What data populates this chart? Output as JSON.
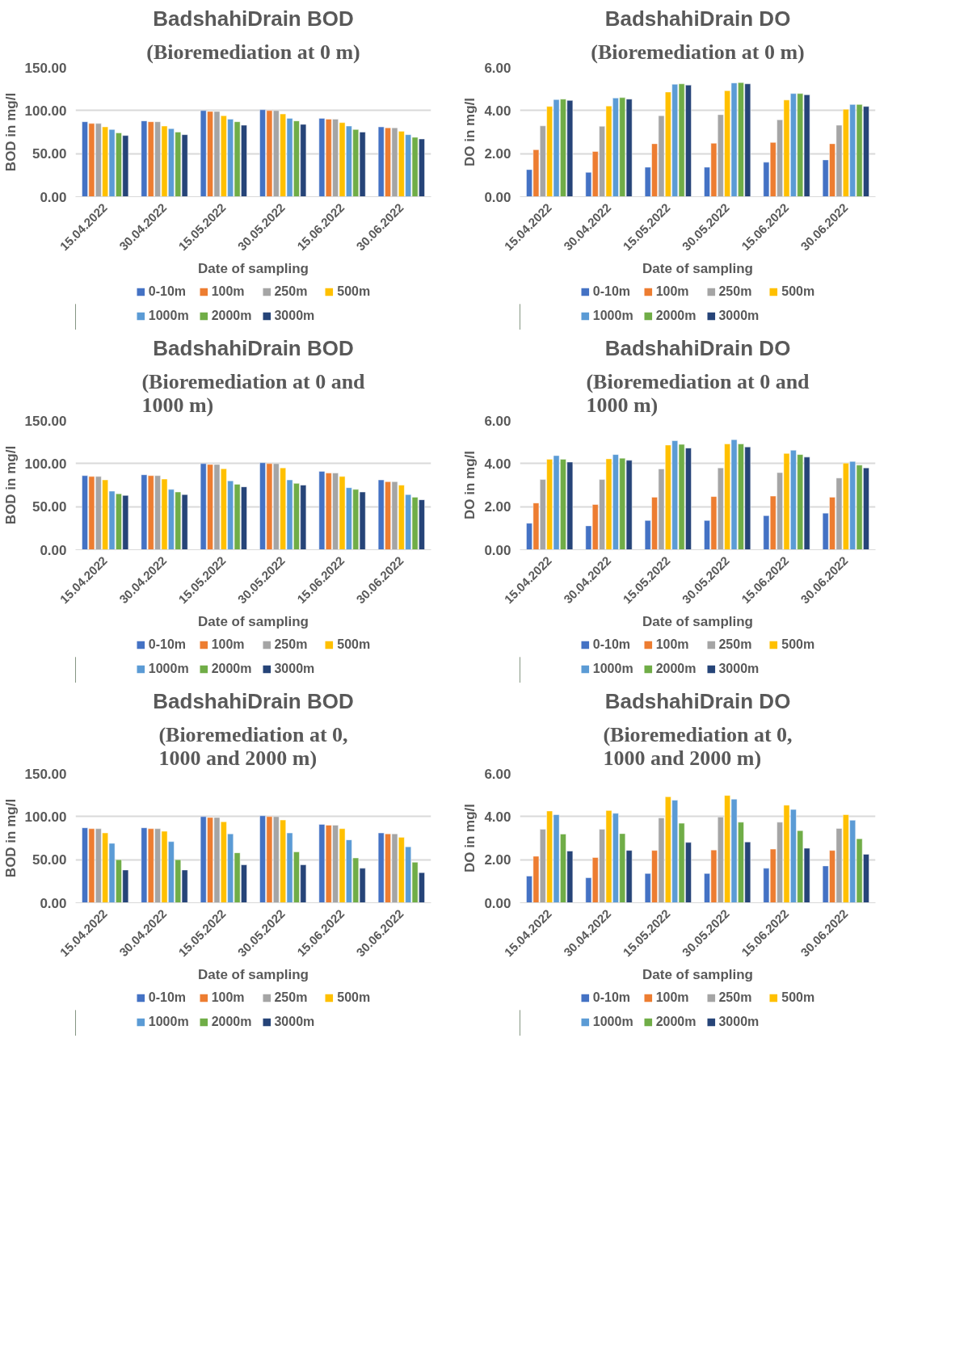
{
  "chart_data": [
    {
      "type": "bar",
      "title": "BadshahiDrain BOD",
      "subtitle": "(Bioremediation at 0 m)",
      "xlabel": "Date of sampling",
      "ylabel": "BOD in mg/l",
      "categories": [
        "15.04.2022",
        "30.04.2022",
        "15.05.2022",
        "30.05.2022",
        "15.06.2022",
        "30.06.2022"
      ],
      "ylim": [
        0,
        150
      ],
      "yticks": [
        {
          "value": 0,
          "label": "0.00"
        },
        {
          "value": 50,
          "label": "50.00"
        },
        {
          "value": 100,
          "label": "100.00"
        },
        {
          "value": 150,
          "label": "150.00"
        }
      ],
      "grid": "y",
      "legend": "bottom",
      "series": [
        {
          "name": "0-10m",
          "color": "#4472c4",
          "values": [
            87,
            88,
            100,
            101,
            91,
            81
          ]
        },
        {
          "name": "100m",
          "color": "#ed7d31",
          "values": [
            85,
            87,
            99,
            100,
            90,
            80
          ]
        },
        {
          "name": "250m",
          "color": "#a5a5a5",
          "values": [
            85,
            87,
            99,
            100,
            90,
            80
          ]
        },
        {
          "name": "500m",
          "color": "#ffc000",
          "values": [
            81,
            82,
            94,
            96,
            86,
            76
          ]
        },
        {
          "name": "1000m",
          "color": "#5b9bd5",
          "values": [
            78,
            79,
            90,
            91,
            82,
            72
          ]
        },
        {
          "name": "2000m",
          "color": "#70ad47",
          "values": [
            74,
            75,
            87,
            88,
            78,
            69
          ]
        },
        {
          "name": "3000m",
          "color": "#264478",
          "values": [
            71,
            72,
            83,
            84,
            75,
            67
          ]
        }
      ]
    },
    {
      "type": "bar",
      "title": "BadshahiDrain DO",
      "subtitle": "(Bioremediation at 0 m)",
      "xlabel": "Date of sampling",
      "ylabel": "DO in mg/l",
      "categories": [
        "15.04.2022",
        "30.04.2022",
        "15.05.2022",
        "30.05.2022",
        "15.06.2022",
        "30.06.2022"
      ],
      "ylim": [
        0,
        6
      ],
      "yticks": [
        {
          "value": 0,
          "label": "0.00"
        },
        {
          "value": 2,
          "label": "2.00"
        },
        {
          "value": 4,
          "label": "4.00"
        },
        {
          "value": 6,
          "label": "6.00"
        }
      ],
      "grid": "y",
      "legend": "bottom",
      "series": [
        {
          "name": "0-10m",
          "color": "#4472c4",
          "values": [
            1.26,
            1.13,
            1.37,
            1.37,
            1.6,
            1.71
          ]
        },
        {
          "name": "100m",
          "color": "#ed7d31",
          "values": [
            2.18,
            2.1,
            2.46,
            2.48,
            2.52,
            2.46
          ]
        },
        {
          "name": "250m",
          "color": "#a5a5a5",
          "values": [
            3.29,
            3.27,
            3.76,
            3.81,
            3.57,
            3.32
          ]
        },
        {
          "name": "500m",
          "color": "#ffc000",
          "values": [
            4.19,
            4.21,
            4.86,
            4.92,
            4.49,
            4.06
          ]
        },
        {
          "name": "1000m",
          "color": "#5b9bd5",
          "values": [
            4.51,
            4.58,
            5.22,
            5.28,
            4.79,
            4.28
          ]
        },
        {
          "name": "2000m",
          "color": "#70ad47",
          "values": [
            4.53,
            4.6,
            5.24,
            5.3,
            4.79,
            4.28
          ]
        },
        {
          "name": "3000m",
          "color": "#264478",
          "values": [
            4.47,
            4.53,
            5.18,
            5.24,
            4.73,
            4.19
          ]
        }
      ]
    },
    {
      "type": "bar",
      "title": "BadshahiDrain BOD",
      "subtitle": "(Bioremediation at 0 and 1000 m)",
      "xlabel": "Date of sampling",
      "ylabel": "BOD in mg/l",
      "categories": [
        "15.04.2022",
        "30.04.2022",
        "15.05.2022",
        "30.05.2022",
        "15.06.2022",
        "30.06.2022"
      ],
      "ylim": [
        0,
        150
      ],
      "yticks": [
        {
          "value": 0,
          "label": "0.00"
        },
        {
          "value": 50,
          "label": "50.00"
        },
        {
          "value": 100,
          "label": "100.00"
        },
        {
          "value": 150,
          "label": "150.00"
        }
      ],
      "grid": "y",
      "legend": "bottom",
      "series": [
        {
          "name": "0-10m",
          "color": "#4472c4",
          "values": [
            86,
            87,
            100,
            101,
            91,
            81
          ]
        },
        {
          "name": "100m",
          "color": "#ed7d31",
          "values": [
            85,
            86,
            99,
            100,
            89,
            79
          ]
        },
        {
          "name": "250m",
          "color": "#a5a5a5",
          "values": [
            85,
            86,
            99,
            100,
            89,
            79
          ]
        },
        {
          "name": "500m",
          "color": "#ffc000",
          "values": [
            81,
            82,
            94,
            95,
            85,
            75
          ]
        },
        {
          "name": "1000m",
          "color": "#5b9bd5",
          "values": [
            68,
            70,
            80,
            81,
            72,
            64
          ]
        },
        {
          "name": "2000m",
          "color": "#70ad47",
          "values": [
            65,
            67,
            76,
            77,
            70,
            61
          ]
        },
        {
          "name": "3000m",
          "color": "#264478",
          "values": [
            63,
            64,
            73,
            75,
            67,
            58
          ]
        }
      ]
    },
    {
      "type": "bar",
      "title": "BadshahiDrain DO",
      "subtitle": "(Bioremediation at 0 and 1000 m)",
      "xlabel": "Date of sampling",
      "ylabel": "DO in mg/l",
      "categories": [
        "15.04.2022",
        "30.04.2022",
        "15.05.2022",
        "30.05.2022",
        "15.06.2022",
        "30.06.2022"
      ],
      "ylim": [
        0,
        6
      ],
      "yticks": [
        {
          "value": 0,
          "label": "0.00"
        },
        {
          "value": 2,
          "label": "2.00"
        },
        {
          "value": 4,
          "label": "4.00"
        },
        {
          "value": 6,
          "label": "6.00"
        }
      ],
      "grid": "y",
      "legend": "bottom",
      "series": [
        {
          "name": "0-10m",
          "color": "#4472c4",
          "values": [
            1.23,
            1.11,
            1.36,
            1.36,
            1.58,
            1.7
          ]
        },
        {
          "name": "100m",
          "color": "#ed7d31",
          "values": [
            2.17,
            2.1,
            2.44,
            2.47,
            2.49,
            2.44
          ]
        },
        {
          "name": "250m",
          "color": "#a5a5a5",
          "values": [
            3.26,
            3.26,
            3.75,
            3.8,
            3.58,
            3.33
          ]
        },
        {
          "name": "500m",
          "color": "#ffc000",
          "values": [
            4.2,
            4.22,
            4.86,
            4.91,
            4.47,
            4.02
          ]
        },
        {
          "name": "1000m",
          "color": "#5b9bd5",
          "values": [
            4.37,
            4.42,
            5.06,
            5.11,
            4.62,
            4.1
          ]
        },
        {
          "name": "2000m",
          "color": "#70ad47",
          "values": [
            4.2,
            4.25,
            4.89,
            4.91,
            4.42,
            3.93
          ]
        },
        {
          "name": "3000m",
          "color": "#264478",
          "values": [
            4.07,
            4.15,
            4.72,
            4.77,
            4.3,
            3.8
          ]
        }
      ]
    },
    {
      "type": "bar",
      "title": "BadshahiDrain BOD",
      "subtitle": "(Bioremediation at 0, 1000 and 2000 m)",
      "xlabel": "Date of sampling",
      "ylabel": "BOD in mg/l",
      "categories": [
        "15.04.2022",
        "30.04.2022",
        "15.05.2022",
        "30.05.2022",
        "15.06.2022",
        "30.06.2022"
      ],
      "ylim": [
        0,
        150
      ],
      "yticks": [
        {
          "value": 0,
          "label": "0.00"
        },
        {
          "value": 50,
          "label": "50.00"
        },
        {
          "value": 100,
          "label": "100.00"
        },
        {
          "value": 150,
          "label": "150.00"
        }
      ],
      "grid": "y",
      "legend": "bottom",
      "series": [
        {
          "name": "0-10m",
          "color": "#4472c4",
          "values": [
            87,
            87,
            100,
            101,
            91,
            81
          ]
        },
        {
          "name": "100m",
          "color": "#ed7d31",
          "values": [
            86,
            86,
            99,
            100,
            90,
            80
          ]
        },
        {
          "name": "250m",
          "color": "#a5a5a5",
          "values": [
            86,
            86,
            99,
            100,
            90,
            80
          ]
        },
        {
          "name": "500m",
          "color": "#ffc000",
          "values": [
            81,
            83,
            94,
            96,
            86,
            76
          ]
        },
        {
          "name": "1000m",
          "color": "#5b9bd5",
          "values": [
            69,
            71,
            80,
            81,
            73,
            65
          ]
        },
        {
          "name": "2000m",
          "color": "#70ad47",
          "values": [
            50,
            50,
            58,
            59,
            52,
            47
          ]
        },
        {
          "name": "3000m",
          "color": "#264478",
          "values": [
            38,
            38,
            44,
            44,
            40,
            35
          ]
        }
      ]
    },
    {
      "type": "bar",
      "title": "BadshahiDrain DO",
      "subtitle": "(Bioremediation at 0, 1000 and 2000 m)",
      "xlabel": "Date of sampling",
      "ylabel": "DO in mg/l",
      "categories": [
        "15.04.2022",
        "30.04.2022",
        "15.05.2022",
        "30.05.2022",
        "15.06.2022",
        "30.06.2022"
      ],
      "ylim": [
        0,
        6
      ],
      "yticks": [
        {
          "value": 0,
          "label": "0.00"
        },
        {
          "value": 2,
          "label": "2.00"
        },
        {
          "value": 4,
          "label": "4.00"
        },
        {
          "value": 6,
          "label": "6.00"
        }
      ],
      "grid": "y",
      "legend": "bottom",
      "series": [
        {
          "name": "0-10m",
          "color": "#4472c4",
          "values": [
            1.24,
            1.16,
            1.36,
            1.36,
            1.6,
            1.71
          ]
        },
        {
          "name": "100m",
          "color": "#ed7d31",
          "values": [
            2.16,
            2.1,
            2.43,
            2.45,
            2.49,
            2.43
          ]
        },
        {
          "name": "250m",
          "color": "#a5a5a5",
          "values": [
            3.41,
            3.41,
            3.94,
            3.98,
            3.74,
            3.45
          ]
        },
        {
          "name": "500m",
          "color": "#ffc000",
          "values": [
            4.26,
            4.28,
            4.92,
            4.98,
            4.53,
            4.09
          ]
        },
        {
          "name": "1000m",
          "color": "#5b9bd5",
          "values": [
            4.09,
            4.15,
            4.76,
            4.81,
            4.33,
            3.83
          ]
        },
        {
          "name": "2000m",
          "color": "#70ad47",
          "values": [
            3.19,
            3.21,
            3.69,
            3.74,
            3.35,
            2.97
          ]
        },
        {
          "name": "3000m",
          "color": "#264478",
          "values": [
            2.4,
            2.43,
            2.8,
            2.82,
            2.53,
            2.25
          ]
        }
      ]
    }
  ]
}
